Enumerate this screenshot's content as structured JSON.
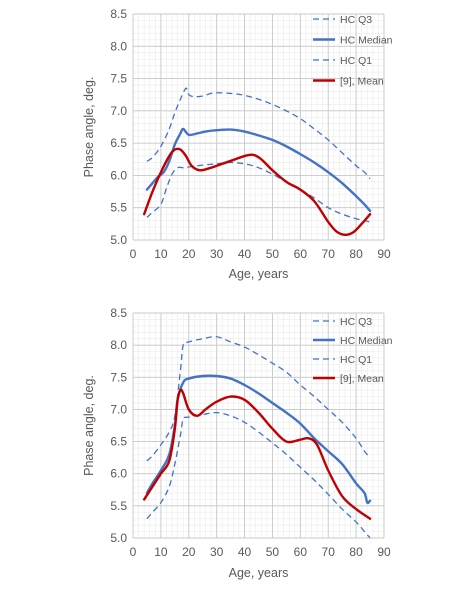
{
  "chart_data": [
    {
      "type": "line",
      "xlabel": "Age, years",
      "ylabel": "Phase angle, deg.",
      "xlim": [
        0,
        90
      ],
      "ylim": [
        5.0,
        8.5
      ],
      "xticks": [
        0,
        10,
        20,
        30,
        40,
        50,
        60,
        70,
        80,
        90
      ],
      "yticks": [
        5.0,
        5.5,
        6.0,
        6.5,
        7.0,
        7.5,
        8.0,
        8.5
      ],
      "xtick_labels": [
        "0",
        "10",
        "20",
        "30",
        "40",
        "50",
        "60",
        "70",
        "80",
        "90"
      ],
      "ytick_labels": [
        "5.0",
        "5.5",
        "6.0",
        "6.5",
        "7.0",
        "7.5",
        "8.0",
        "8.5"
      ],
      "grid": true,
      "legend_position": "top-right",
      "series": [
        {
          "name": "HC Q3",
          "color": "#4472c4",
          "dashed": true,
          "width": 1.3,
          "x": [
            5,
            7,
            10,
            13,
            15,
            17,
            19,
            20,
            22,
            25,
            28,
            30,
            35,
            40,
            45,
            50,
            55,
            60,
            65,
            70,
            75,
            80,
            83,
            85
          ],
          "y": [
            6.22,
            6.28,
            6.45,
            6.72,
            6.97,
            7.18,
            7.35,
            7.25,
            7.22,
            7.23,
            7.27,
            7.28,
            7.27,
            7.24,
            7.18,
            7.1,
            7.0,
            6.88,
            6.72,
            6.55,
            6.35,
            6.15,
            6.05,
            5.95
          ]
        },
        {
          "name": "HC Median",
          "color": "#4472c4",
          "dashed": false,
          "width": 2.4,
          "x": [
            5,
            7,
            9,
            11,
            13,
            15,
            17,
            18,
            20,
            23,
            26,
            30,
            35,
            40,
            45,
            50,
            55,
            60,
            65,
            70,
            75,
            80,
            83,
            85
          ],
          "y": [
            5.78,
            5.88,
            5.98,
            6.05,
            6.22,
            6.48,
            6.65,
            6.72,
            6.63,
            6.65,
            6.68,
            6.7,
            6.71,
            6.68,
            6.62,
            6.55,
            6.45,
            6.33,
            6.2,
            6.05,
            5.88,
            5.68,
            5.55,
            5.45
          ]
        },
        {
          "name": "HC Q1",
          "color": "#4472c4",
          "dashed": true,
          "width": 1.3,
          "x": [
            5,
            7,
            10,
            12,
            14,
            16,
            18,
            20,
            25,
            30,
            35,
            40,
            45,
            50,
            55,
            60,
            65,
            70,
            75,
            80,
            83,
            85
          ],
          "y": [
            5.35,
            5.43,
            5.55,
            5.8,
            6.02,
            6.12,
            6.12,
            6.13,
            6.16,
            6.18,
            6.2,
            6.18,
            6.12,
            6.02,
            5.9,
            5.78,
            5.65,
            5.5,
            5.4,
            5.33,
            5.3,
            5.28
          ]
        },
        {
          "name": "[9], Mean",
          "color": "#c00000",
          "dashed": false,
          "width": 2.4,
          "x": [
            4,
            7,
            10,
            13,
            15,
            17,
            19,
            21,
            24,
            28,
            32,
            36,
            40,
            43,
            46,
            50,
            55,
            60,
            65,
            70,
            73,
            76,
            79,
            82,
            85
          ],
          "y": [
            5.4,
            5.75,
            6.05,
            6.3,
            6.4,
            6.4,
            6.3,
            6.15,
            6.08,
            6.12,
            6.18,
            6.24,
            6.3,
            6.32,
            6.25,
            6.08,
            5.9,
            5.78,
            5.6,
            5.28,
            5.13,
            5.08,
            5.12,
            5.25,
            5.4
          ]
        }
      ]
    },
    {
      "type": "line",
      "xlabel": "Age, years",
      "ylabel": "Phase angle, deg.",
      "xlim": [
        0,
        90
      ],
      "ylim": [
        5.0,
        8.5
      ],
      "xticks": [
        0,
        10,
        20,
        30,
        40,
        50,
        60,
        70,
        80,
        90
      ],
      "yticks": [
        5.0,
        5.5,
        6.0,
        6.5,
        7.0,
        7.5,
        8.0,
        8.5
      ],
      "xtick_labels": [
        "0",
        "10",
        "20",
        "30",
        "40",
        "50",
        "60",
        "70",
        "80",
        "90"
      ],
      "ytick_labels": [
        "5.0",
        "5.5",
        "6.0",
        "6.5",
        "7.0",
        "7.5",
        "8.0",
        "8.5"
      ],
      "grid": true,
      "legend_position": "top-right",
      "series": [
        {
          "name": "HC Q3",
          "color": "#4472c4",
          "dashed": true,
          "width": 1.3,
          "x": [
            5,
            7,
            10,
            13,
            15,
            17,
            18,
            20,
            25,
            30,
            35,
            40,
            45,
            50,
            55,
            60,
            65,
            70,
            75,
            80,
            83,
            85
          ],
          "y": [
            6.2,
            6.28,
            6.45,
            6.65,
            6.9,
            7.6,
            8.0,
            8.05,
            8.1,
            8.13,
            8.05,
            7.97,
            7.85,
            7.72,
            7.58,
            7.38,
            7.2,
            7.0,
            6.8,
            6.55,
            6.35,
            6.25
          ]
        },
        {
          "name": "HC Median",
          "color": "#4472c4",
          "dashed": false,
          "width": 2.4,
          "x": [
            5,
            7,
            10,
            13,
            15,
            16,
            18,
            20,
            25,
            30,
            35,
            40,
            45,
            50,
            55,
            60,
            65,
            70,
            75,
            80,
            83,
            84,
            85
          ],
          "y": [
            5.7,
            5.85,
            6.05,
            6.3,
            6.75,
            7.15,
            7.42,
            7.48,
            7.52,
            7.52,
            7.48,
            7.38,
            7.25,
            7.1,
            6.95,
            6.78,
            6.55,
            6.35,
            6.15,
            5.85,
            5.7,
            5.55,
            5.58
          ]
        },
        {
          "name": "HC Q1",
          "color": "#4472c4",
          "dashed": true,
          "width": 1.3,
          "x": [
            5,
            7,
            10,
            13,
            15,
            17,
            18,
            20,
            25,
            30,
            35,
            40,
            45,
            50,
            55,
            60,
            65,
            70,
            75,
            80,
            83,
            85
          ],
          "y": [
            5.3,
            5.4,
            5.55,
            5.8,
            6.15,
            6.6,
            6.85,
            6.88,
            6.92,
            6.95,
            6.9,
            6.8,
            6.65,
            6.48,
            6.3,
            6.1,
            5.9,
            5.68,
            5.45,
            5.25,
            5.1,
            5.0
          ]
        },
        {
          "name": "[9], Mean",
          "color": "#c00000",
          "dashed": false,
          "width": 2.4,
          "x": [
            4,
            7,
            10,
            13,
            15,
            16,
            17,
            18,
            20,
            23,
            26,
            30,
            35,
            40,
            45,
            50,
            55,
            60,
            63,
            66,
            70,
            75,
            80,
            85
          ],
          "y": [
            5.6,
            5.8,
            6.0,
            6.2,
            6.7,
            7.15,
            7.3,
            7.25,
            7.0,
            6.9,
            7.0,
            7.12,
            7.2,
            7.15,
            6.95,
            6.7,
            6.5,
            6.53,
            6.55,
            6.45,
            6.05,
            5.65,
            5.45,
            5.3
          ]
        }
      ]
    }
  ]
}
